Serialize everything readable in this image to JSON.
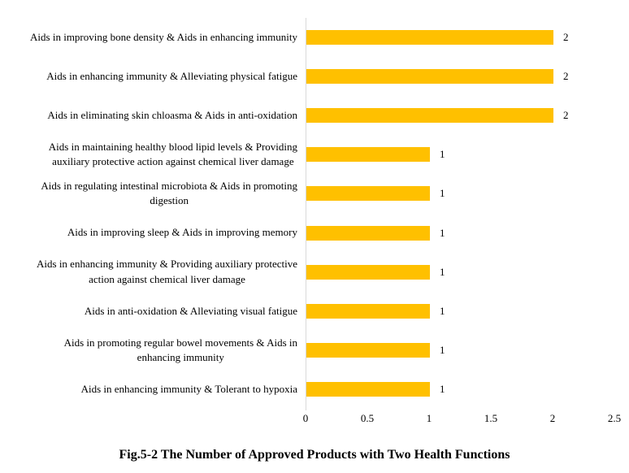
{
  "chart_data": {
    "type": "bar",
    "orientation": "horizontal",
    "title": "Fig.5-2 The Number of Approved Products with Two Health Functions",
    "xlabel": "",
    "ylabel": "",
    "categories": [
      "Aids in improving bone density & Aids in enhancing immunity",
      "Aids in enhancing immunity & Alleviating physical fatigue",
      "Aids in eliminating skin chloasma & Aids in anti-oxidation",
      "Aids in maintaining healthy blood lipid levels & Providing\nauxiliary protective action against chemical liver damage",
      "Aids in regulating intestinal microbiota & Aids in promoting\ndigestion",
      "Aids in improving sleep & Aids in improving memory",
      "Aids in enhancing immunity & Providing auxiliary protective\naction against chemical liver damage",
      "Aids in anti-oxidation & Alleviating visual fatigue",
      "Aids in promoting regular bowel movements & Aids in\nenhancing immunity",
      "Aids in enhancing immunity & Tolerant to hypoxia"
    ],
    "values": [
      2,
      2,
      2,
      1,
      1,
      1,
      1,
      1,
      1,
      1
    ],
    "data_labels": [
      "2",
      "2",
      "2",
      "1",
      "1",
      "1",
      "1",
      "1",
      "1",
      "1"
    ],
    "xlim": [
      0,
      2.5
    ],
    "x_ticks": [
      0,
      0.5,
      1,
      1.5,
      2,
      2.5
    ],
    "x_tick_labels": [
      "0",
      "0.5",
      "1",
      "1.5",
      "2",
      "2.5"
    ],
    "grid": false,
    "legend": "none",
    "bar_color": "#FFC000",
    "axis_line_color": "#D9D9D9"
  }
}
